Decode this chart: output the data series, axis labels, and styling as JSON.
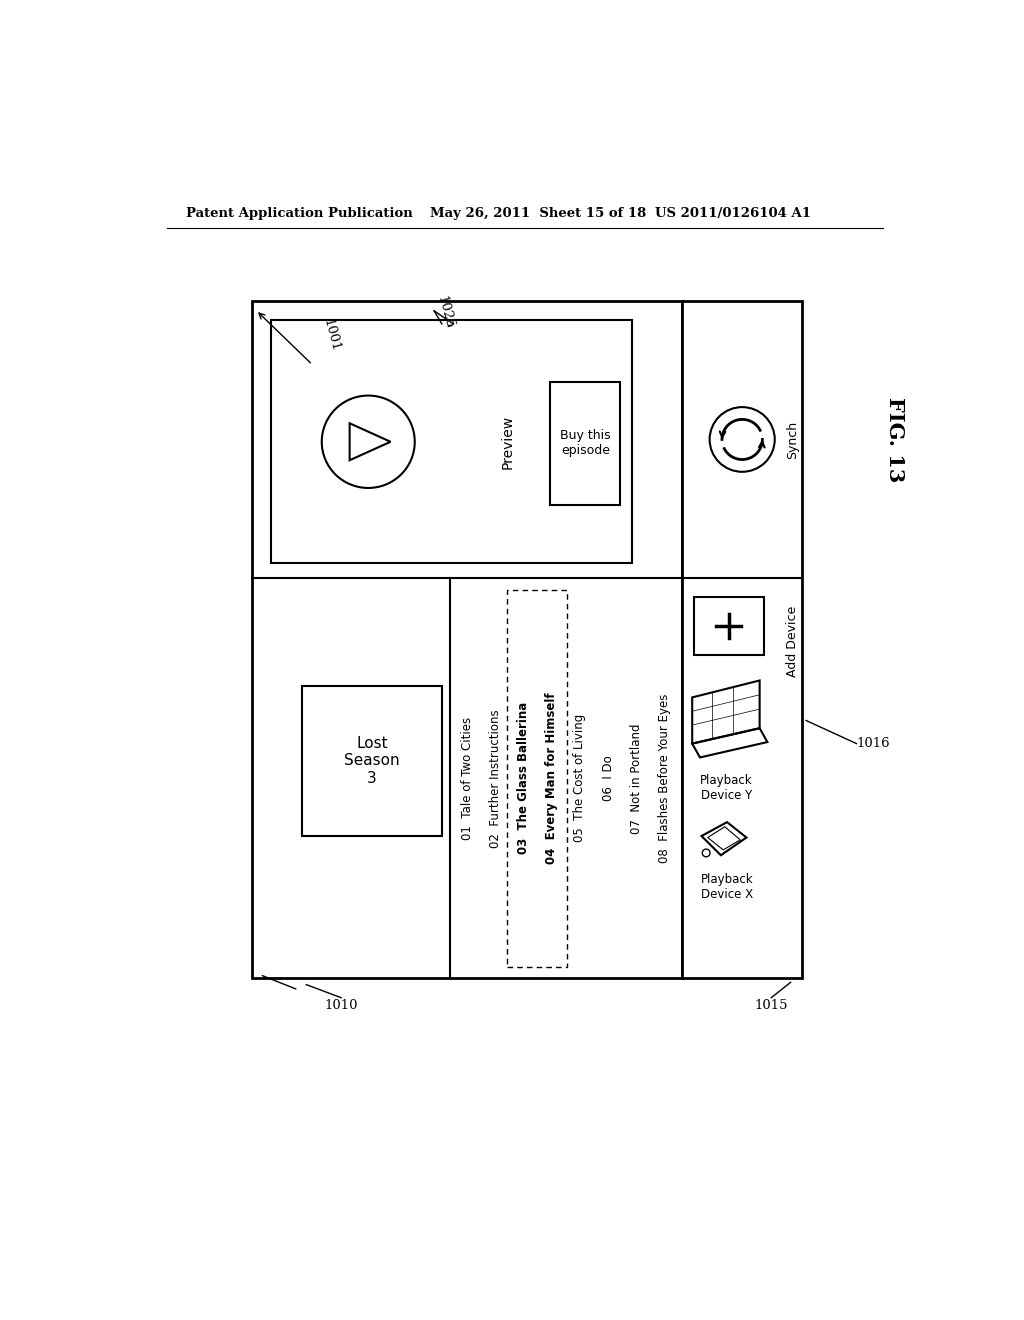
{
  "bg_color": "#ffffff",
  "header_left": "Patent Application Publication",
  "header_mid": "May 26, 2011  Sheet 15 of 18",
  "header_right": "US 2011/0126104 A1",
  "fig_label": "FIG. 13",
  "label_1001": "1001",
  "label_1025": "1025",
  "label_1010": "1010",
  "label_1015": "1015",
  "label_1016": "1016",
  "episodes": [
    "01  Tale of Two Cities",
    "02  Further Instructions",
    "03  The Glass Ballerina",
    "04  Every Man for Himself",
    "05  The Cost of Living",
    "06  I Do",
    "07  Not in Portland",
    "08  Flashes Before Your Eyes"
  ],
  "preview_text": "Preview",
  "synch_text": "Synch",
  "add_device_text": "Add Device",
  "playback_x_text": "Playback\nDevice X",
  "playback_y_text": "Playback\nDevice Y",
  "lost_text": "Lost\nSeason\n3",
  "buy_text": "Buy this\nepisode"
}
